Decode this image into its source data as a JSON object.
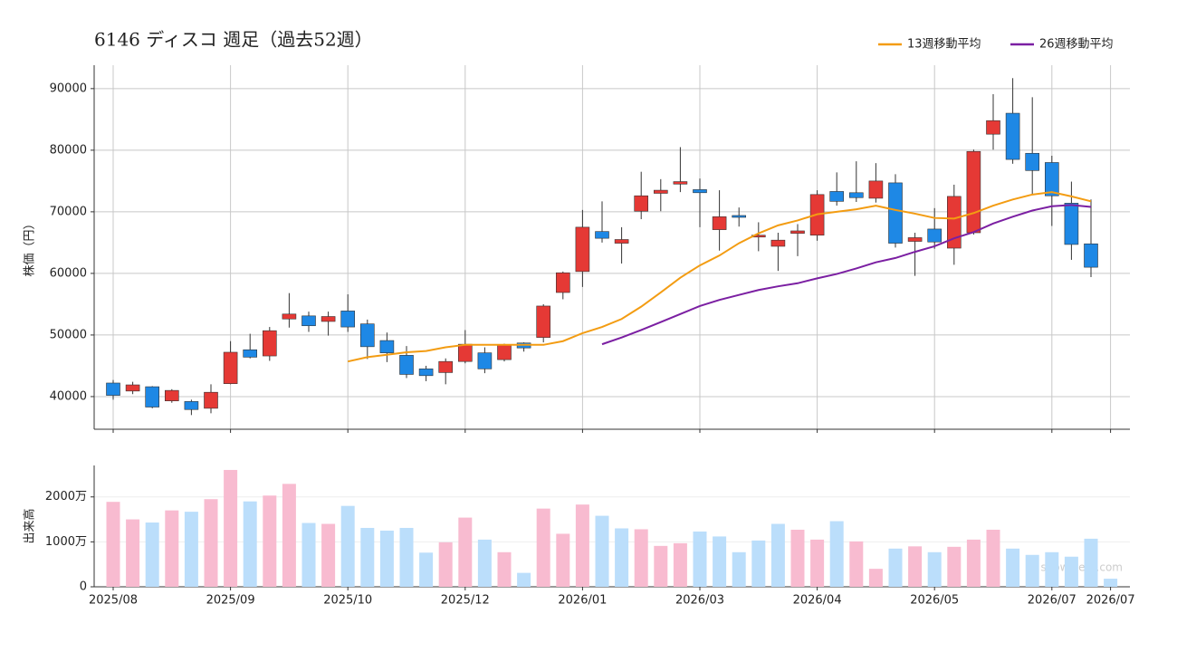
{
  "chart_data": [
    {
      "type": "candlestick",
      "title": "6146 ディスコ  週足（過去52週）",
      "ylabel": "株価（円）",
      "open": [
        42200,
        40900,
        41600,
        39300,
        39200,
        38100,
        42100,
        47600,
        46600,
        52600,
        53100,
        52200,
        53900,
        51800,
        49100,
        46700,
        44500,
        43900,
        45700,
        47100,
        46000,
        48700,
        49600,
        56900,
        60300,
        66800,
        64900,
        70100,
        73000,
        74500,
        73600,
        67100,
        69400,
        65900,
        64400,
        66500,
        66200,
        73300,
        73100,
        72200,
        74700,
        65200,
        67200,
        64100,
        66600,
        82600,
        86000,
        79500,
        78000,
        71400,
        64800,
        null
      ],
      "high": [
        42700,
        42400,
        41700,
        41200,
        39500,
        42000,
        49000,
        50200,
        51300,
        56800,
        53800,
        53800,
        56600,
        52500,
        50400,
        48200,
        45000,
        46200,
        50800,
        48000,
        48600,
        48800,
        55000,
        60300,
        70300,
        71700,
        67500,
        76500,
        75300,
        80500,
        75400,
        73500,
        70700,
        68300,
        66600,
        68000,
        73500,
        76400,
        78200,
        77900,
        76100,
        66600,
        70600,
        74400,
        80100,
        89100,
        91700,
        88600,
        79100,
        74900,
        72000,
        null
      ],
      "low": [
        39500,
        40400,
        38100,
        39000,
        37000,
        37300,
        42000,
        46200,
        45800,
        51200,
        50500,
        49900,
        50500,
        46100,
        45600,
        43000,
        42500,
        42000,
        45400,
        43800,
        45700,
        47300,
        48800,
        55800,
        57800,
        65000,
        61600,
        68800,
        70100,
        73200,
        67500,
        63700,
        67600,
        63600,
        60400,
        62800,
        65300,
        71000,
        71600,
        71500,
        64200,
        59600,
        64000,
        61400,
        66300,
        80100,
        77800,
        72700,
        67700,
        62200,
        59400,
        null
      ],
      "close": [
        40200,
        41900,
        38300,
        41000,
        37900,
        40700,
        47200,
        46400,
        50700,
        53400,
        51500,
        53000,
        51300,
        48100,
        47100,
        43600,
        43400,
        45700,
        48500,
        44500,
        48400,
        47900,
        54700,
        60100,
        67500,
        65700,
        65500,
        72600,
        73500,
        74900,
        73100,
        69200,
        69100,
        66200,
        65400,
        66900,
        72800,
        71700,
        72300,
        75000,
        64900,
        65800,
        65100,
        72500,
        79800,
        84800,
        78500,
        76700,
        72600,
        64700,
        61000,
        null
      ],
      "up_color": "#e53935",
      "down_color": "#1e88e5",
      "series": [
        {
          "name": "13週移動平均",
          "color": "#f39c12",
          "values": [
            null,
            null,
            null,
            null,
            null,
            null,
            null,
            null,
            null,
            null,
            null,
            null,
            45700,
            46400,
            46800,
            47200,
            47400,
            48000,
            48400,
            48400,
            48400,
            48400,
            48400,
            49000,
            50300,
            51300,
            52600,
            54600,
            56900,
            59300,
            61300,
            62900,
            64900,
            66500,
            67800,
            68600,
            69600,
            70000,
            70400,
            71000,
            70300,
            69700,
            69000,
            68900,
            69800,
            71000,
            72000,
            72800,
            73200,
            72500,
            71700,
            null
          ]
        },
        {
          "name": "26週移動平均",
          "color": "#7b1fa2",
          "values": [
            null,
            null,
            null,
            null,
            null,
            null,
            null,
            null,
            null,
            null,
            null,
            null,
            null,
            null,
            null,
            null,
            null,
            null,
            null,
            null,
            null,
            null,
            null,
            null,
            null,
            48500,
            49600,
            50800,
            52100,
            53400,
            54700,
            55700,
            56500,
            57300,
            57900,
            58400,
            59200,
            59900,
            60800,
            61800,
            62500,
            63500,
            64400,
            65700,
            66700,
            68100,
            69200,
            70200,
            70900,
            71100,
            70800,
            null
          ]
        }
      ],
      "ylim": [
        34700,
        93800
      ],
      "yticks": [
        40000,
        50000,
        60000,
        70000,
        80000,
        90000
      ],
      "grid": true,
      "legend": "top-right"
    },
    {
      "type": "bar",
      "ylabel": "出来高",
      "watermark": "show-zeet.com",
      "categories": [
        "2025/08",
        null,
        null,
        null,
        null,
        null,
        "2025/09",
        null,
        null,
        null,
        null,
        null,
        "2025/10",
        null,
        null,
        null,
        null,
        null,
        "2025/12",
        null,
        null,
        null,
        null,
        null,
        "2026/01",
        null,
        null,
        null,
        null,
        null,
        "2026/03",
        null,
        null,
        null,
        null,
        null,
        "2026/04",
        null,
        null,
        null,
        null,
        null,
        "2026/05",
        null,
        null,
        null,
        null,
        null,
        "2026/07",
        null,
        null,
        "2026/07"
      ],
      "values": [
        18900000,
        15000000,
        14300000,
        17000000,
        16700000,
        19500000,
        26000000,
        19000000,
        20300000,
        22900000,
        14200000,
        14000000,
        18000000,
        13100000,
        12500000,
        13100000,
        7600000,
        9900000,
        15400000,
        10500000,
        7700000,
        3100000,
        17400000,
        11800000,
        18300000,
        15800000,
        13000000,
        12800000,
        9100000,
        9700000,
        12300000,
        11200000,
        7700000,
        10300000,
        14000000,
        12700000,
        10500000,
        14600000,
        10100000,
        4000000,
        8500000,
        9000000,
        7700000,
        8900000,
        10500000,
        12700000,
        8500000,
        7100000,
        7700000,
        6700000,
        10700000,
        1800000
      ],
      "colors": [
        "#f8bbd0",
        "#f8bbd0",
        "#bbdefb",
        "#f8bbd0",
        "#bbdefb",
        "#f8bbd0",
        "#f8bbd0",
        "#bbdefb",
        "#f8bbd0",
        "#f8bbd0",
        "#bbdefb",
        "#f8bbd0",
        "#bbdefb",
        "#bbdefb",
        "#bbdefb",
        "#bbdefb",
        "#bbdefb",
        "#f8bbd0",
        "#f8bbd0",
        "#bbdefb",
        "#f8bbd0",
        "#bbdefb",
        "#f8bbd0",
        "#f8bbd0",
        "#f8bbd0",
        "#bbdefb",
        "#bbdefb",
        "#f8bbd0",
        "#f8bbd0",
        "#f8bbd0",
        "#bbdefb",
        "#bbdefb",
        "#bbdefb",
        "#bbdefb",
        "#bbdefb",
        "#f8bbd0",
        "#f8bbd0",
        "#bbdefb",
        "#f8bbd0",
        "#f8bbd0",
        "#bbdefb",
        "#f8bbd0",
        "#bbdefb",
        "#f8bbd0",
        "#f8bbd0",
        "#f8bbd0",
        "#bbdefb",
        "#bbdefb",
        "#bbdefb",
        "#bbdefb",
        "#bbdefb",
        "#bbdefb"
      ],
      "ylim": [
        0,
        27000000
      ],
      "yticks": [
        {
          "value": 0,
          "label": "0"
        },
        {
          "value": 10000000,
          "label": "1000万"
        },
        {
          "value": 20000000,
          "label": "2000万"
        }
      ],
      "grid": true
    }
  ]
}
